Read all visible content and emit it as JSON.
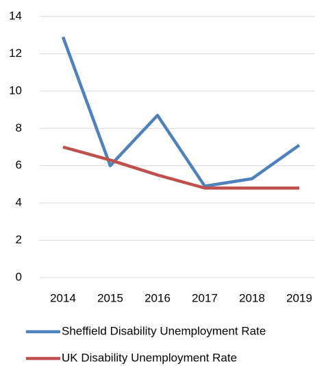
{
  "chart_data": {
    "type": "line",
    "categories": [
      "2014",
      "2015",
      "2016",
      "2017",
      "2018",
      "2019"
    ],
    "series": [
      {
        "name": "Sheffield Disability Unemployment Rate",
        "color": "#4f81bd",
        "values": [
          12.9,
          6.0,
          8.7,
          4.9,
          5.3,
          7.1
        ]
      },
      {
        "name": "UK Disability Unemployment Rate",
        "color": "#c0504d",
        "values": [
          7.0,
          6.3,
          5.5,
          4.8,
          4.8,
          4.8
        ]
      }
    ],
    "ylim": [
      0,
      14
    ],
    "yticks": [
      0,
      2,
      4,
      6,
      8,
      10,
      12,
      14
    ],
    "grid": true,
    "legend": "bottom"
  }
}
